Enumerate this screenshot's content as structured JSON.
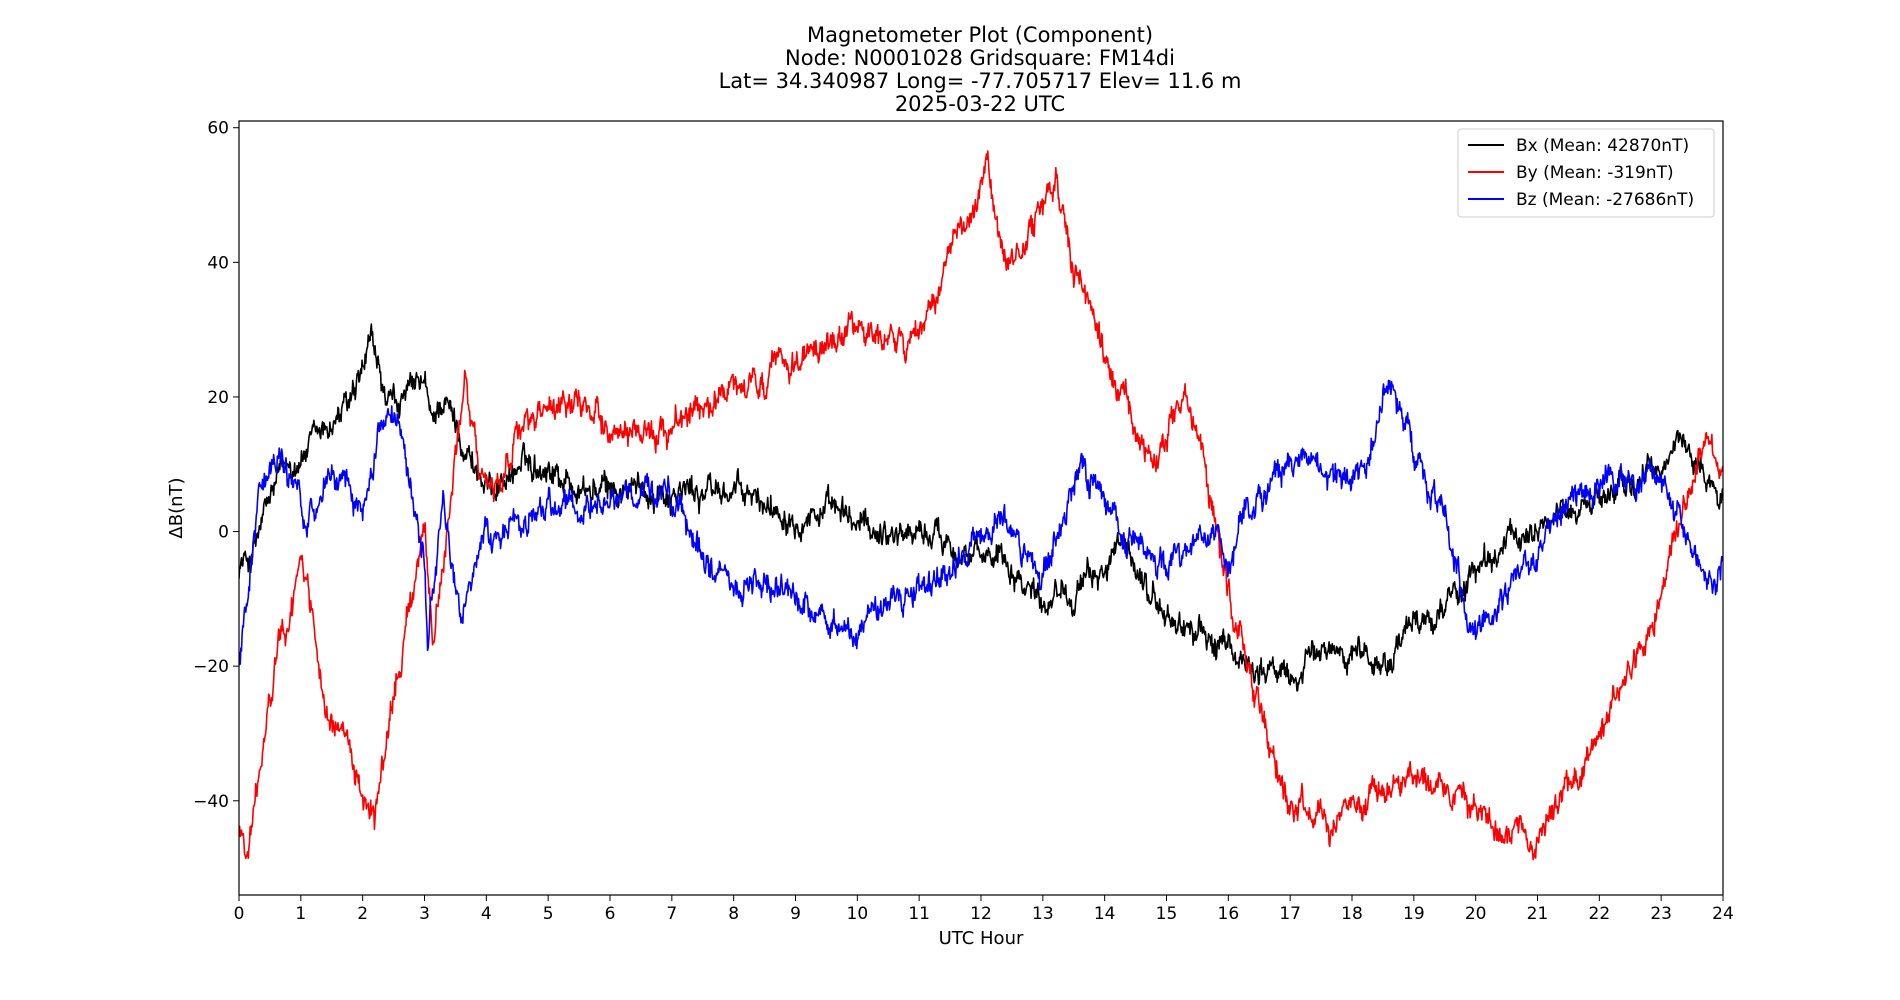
{
  "chart_data": {
    "type": "line",
    "title": [
      "Magnetometer Plot (Component)",
      "Node:  N0001028     Gridsquare:  FM14di",
      "Lat= 34.340987    Long= -77.705717    Elev= 11.6 m",
      "2025-03-22  UTC"
    ],
    "xlabel": "UTC Hour",
    "ylabel": "ΔB(nT)",
    "xlim": [
      0,
      24
    ],
    "ylim": [
      -54,
      61
    ],
    "xticks": [
      0,
      1,
      2,
      3,
      4,
      5,
      6,
      7,
      8,
      9,
      10,
      11,
      12,
      13,
      14,
      15,
      16,
      17,
      18,
      19,
      20,
      21,
      22,
      23,
      24
    ],
    "yticks": [
      -40,
      -20,
      0,
      20,
      40,
      60
    ],
    "grid": false,
    "legend_position": "top-right",
    "noise_amplitude": 2.2,
    "series": [
      {
        "name": "Bx (Mean: 42870nT)",
        "color": "#000000",
        "x": [
          0,
          0.2,
          0.4,
          0.6,
          0.8,
          1.0,
          1.3,
          1.6,
          1.9,
          2.15,
          2.4,
          2.7,
          3.0,
          3.1,
          3.3,
          3.6,
          3.8,
          4.0,
          4.3,
          4.6,
          5.0,
          5.5,
          6.0,
          6.5,
          7.0,
          7.5,
          8.0,
          8.5,
          9.0,
          9.5,
          10.0,
          10.5,
          11.0,
          11.5,
          12.0,
          12.3,
          12.6,
          13.0,
          13.3,
          13.6,
          14.0,
          14.3,
          14.6,
          15.0,
          15.5,
          16.0,
          16.5,
          17.0,
          17.5,
          18.0,
          18.5,
          19.0,
          19.5,
          20.0,
          20.5,
          21.0,
          21.5,
          22.0,
          22.5,
          23.0,
          23.3,
          23.6,
          23.8,
          24.0
        ],
        "y": [
          -5,
          -4,
          2,
          7,
          10,
          11,
          14,
          17,
          20,
          28,
          18,
          20,
          22,
          16,
          20,
          14,
          10,
          6,
          8,
          10,
          10,
          6,
          6,
          6,
          6,
          6,
          6,
          4,
          3,
          3,
          1,
          0,
          0,
          -1,
          -5,
          -2,
          -6,
          -10,
          -8,
          -9,
          -5,
          -3,
          -7,
          -13,
          -15,
          -18,
          -20,
          -22,
          -18,
          -17,
          -20,
          -14,
          -11,
          -6,
          -2,
          1,
          3,
          5,
          7,
          9,
          14,
          10,
          7,
          5
        ]
      },
      {
        "name": "By (Mean: -319nT)",
        "color": "#ff0000",
        "x": [
          0,
          0.15,
          0.3,
          0.5,
          0.7,
          0.9,
          1.0,
          1.15,
          1.4,
          1.7,
          2.0,
          2.2,
          2.5,
          2.8,
          3.0,
          3.15,
          3.3,
          3.5,
          3.65,
          3.8,
          4.0,
          4.2,
          4.5,
          5.0,
          5.5,
          6.0,
          6.5,
          7.0,
          7.5,
          8.0,
          8.5,
          9.0,
          9.5,
          10.0,
          10.5,
          10.8,
          11.0,
          11.3,
          11.6,
          11.9,
          12.1,
          12.4,
          12.6,
          13.0,
          13.2,
          13.5,
          13.8,
          14.0,
          14.3,
          14.6,
          14.8,
          15.0,
          15.3,
          15.6,
          15.8,
          16.0,
          16.3,
          16.6,
          17.0,
          17.5,
          18.0,
          18.5,
          19.0,
          19.5,
          20.0,
          20.5,
          21.0,
          21.5,
          22.0,
          22.5,
          23.0,
          23.2,
          23.5,
          23.7,
          24.0
        ],
        "y": [
          -44,
          -47,
          -38,
          -25,
          -15,
          -10,
          -3,
          -10,
          -25,
          -33,
          -38,
          -42,
          -25,
          -10,
          3,
          -18,
          -5,
          10,
          22,
          15,
          5,
          8,
          15,
          17,
          18,
          16,
          13,
          17,
          19,
          20,
          22,
          26,
          28,
          30,
          29,
          27,
          30,
          35,
          45,
          46,
          53,
          40,
          42,
          48,
          52,
          40,
          33,
          25,
          20,
          12,
          10,
          14,
          18,
          10,
          2,
          -8,
          -18,
          -30,
          -40,
          -43,
          -42,
          -38,
          -37,
          -38,
          -42,
          -45,
          -45,
          -38,
          -30,
          -20,
          -10,
          0,
          5,
          13,
          10
        ]
      },
      {
        "name": "Bz (Mean: -27686nT)",
        "color": "#0000ff",
        "x": [
          0,
          0.15,
          0.3,
          0.5,
          0.7,
          0.9,
          1.1,
          1.4,
          1.7,
          2.0,
          2.2,
          2.4,
          2.6,
          2.8,
          3.0,
          3.05,
          3.1,
          3.3,
          3.5,
          3.6,
          3.8,
          4.0,
          4.3,
          4.6,
          5.0,
          5.5,
          6.0,
          6.5,
          7.0,
          7.3,
          7.6,
          8.0,
          8.5,
          9.0,
          9.5,
          10.0,
          10.5,
          11.0,
          11.5,
          12.0,
          12.3,
          12.6,
          13.0,
          13.3,
          13.6,
          13.8,
          14.0,
          14.3,
          14.6,
          15.0,
          15.3,
          15.6,
          15.9,
          16.0,
          16.2,
          16.5,
          17.0,
          17.5,
          18.0,
          18.3,
          18.6,
          18.9,
          19.2,
          19.5,
          19.8,
          20.0,
          20.3,
          20.6,
          21.0,
          21.5,
          22.0,
          22.5,
          23.0,
          23.3,
          23.6,
          23.8,
          24.0
        ],
        "y": [
          -20,
          -10,
          5,
          10,
          12,
          5,
          3,
          7,
          8,
          2,
          12,
          18,
          18,
          5,
          -5,
          -20,
          -10,
          5,
          -8,
          -12,
          -8,
          0,
          -2,
          2,
          3,
          3,
          4,
          5,
          5,
          0,
          -5,
          -8,
          -8,
          -10,
          -14,
          -14,
          -12,
          -8,
          -5,
          0,
          3,
          -1,
          -7,
          2,
          8,
          7,
          4,
          0,
          -3,
          -5,
          -2,
          0,
          -2,
          -4,
          2,
          5,
          10,
          10,
          8,
          10,
          22,
          15,
          8,
          2,
          -10,
          -15,
          -12,
          -8,
          -2,
          5,
          7,
          8,
          9,
          2,
          -6,
          -8,
          -5
        ]
      }
    ]
  }
}
